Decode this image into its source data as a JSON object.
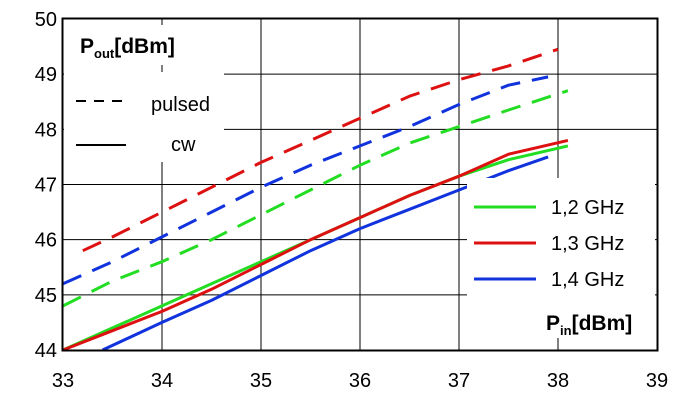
{
  "chart_data": {
    "type": "line",
    "xlim": [
      33,
      39
    ],
    "ylim": [
      44,
      50
    ],
    "x_ticks": [
      33,
      34,
      35,
      36,
      37,
      38,
      39
    ],
    "y_ticks": [
      44,
      45,
      46,
      47,
      48,
      49,
      50
    ],
    "grid": true,
    "ylabel": {
      "main": "P",
      "sub": "out",
      "unit": "[dBm]"
    },
    "xlabel": {
      "main": "P",
      "sub": "in",
      "unit": "[dBm]"
    },
    "style_legend": {
      "pulsed": "pulsed",
      "cw": "cw"
    },
    "series": [
      {
        "name": "1,2 GHz",
        "mode": "pulsed",
        "color": "#22dd22",
        "x": [
          33,
          33.5,
          34,
          34.5,
          35,
          35.5,
          36,
          36.5,
          37,
          37.5,
          38.1
        ],
        "y": [
          44.8,
          45.25,
          45.6,
          46.0,
          46.45,
          46.9,
          47.35,
          47.75,
          48.05,
          48.35,
          48.7
        ]
      },
      {
        "name": "1,3 GHz",
        "mode": "pulsed",
        "color": "#dd1111",
        "x": [
          33.2,
          33.5,
          34,
          34.5,
          35,
          35.5,
          36,
          36.5,
          37,
          37.5,
          38
        ],
        "y": [
          45.8,
          46.05,
          46.5,
          46.95,
          47.4,
          47.8,
          48.2,
          48.6,
          48.9,
          49.15,
          49.45
        ]
      },
      {
        "name": "1,4 GHz",
        "mode": "pulsed",
        "color": "#1133dd",
        "x": [
          33,
          33.5,
          34,
          34.5,
          35,
          35.5,
          36,
          36.5,
          37,
          37.5,
          37.9
        ],
        "y": [
          45.2,
          45.6,
          46.05,
          46.5,
          46.95,
          47.35,
          47.7,
          48.05,
          48.45,
          48.8,
          48.95
        ]
      },
      {
        "name": "1,2 GHz",
        "mode": "cw",
        "color": "#22dd22",
        "x": [
          33,
          33.5,
          34,
          34.5,
          35,
          35.5,
          36,
          36.5,
          37,
          37.5,
          38.1
        ],
        "y": [
          44.0,
          44.4,
          44.8,
          45.2,
          45.6,
          46.0,
          46.4,
          46.8,
          47.15,
          47.45,
          47.7
        ]
      },
      {
        "name": "1,3 GHz",
        "mode": "cw",
        "color": "#dd1111",
        "x": [
          33,
          33.5,
          34,
          34.5,
          35,
          35.5,
          36,
          36.5,
          37,
          37.5,
          38.1
        ],
        "y": [
          44.0,
          44.35,
          44.7,
          45.1,
          45.55,
          46.0,
          46.4,
          46.8,
          47.15,
          47.55,
          47.8
        ]
      },
      {
        "name": "1,4 GHz",
        "mode": "cw",
        "color": "#1133dd",
        "x": [
          33.4,
          34,
          34.5,
          35,
          35.5,
          36,
          36.5,
          37,
          37.5,
          37.9
        ],
        "y": [
          44.0,
          44.5,
          44.9,
          45.35,
          45.8,
          46.2,
          46.55,
          46.9,
          47.25,
          47.5
        ]
      }
    ],
    "legend": [
      {
        "label": "1,2 GHz",
        "color": "#22dd22"
      },
      {
        "label": "1,3 GHz",
        "color": "#dd1111"
      },
      {
        "label": "1,4 GHz",
        "color": "#1133dd"
      }
    ]
  }
}
